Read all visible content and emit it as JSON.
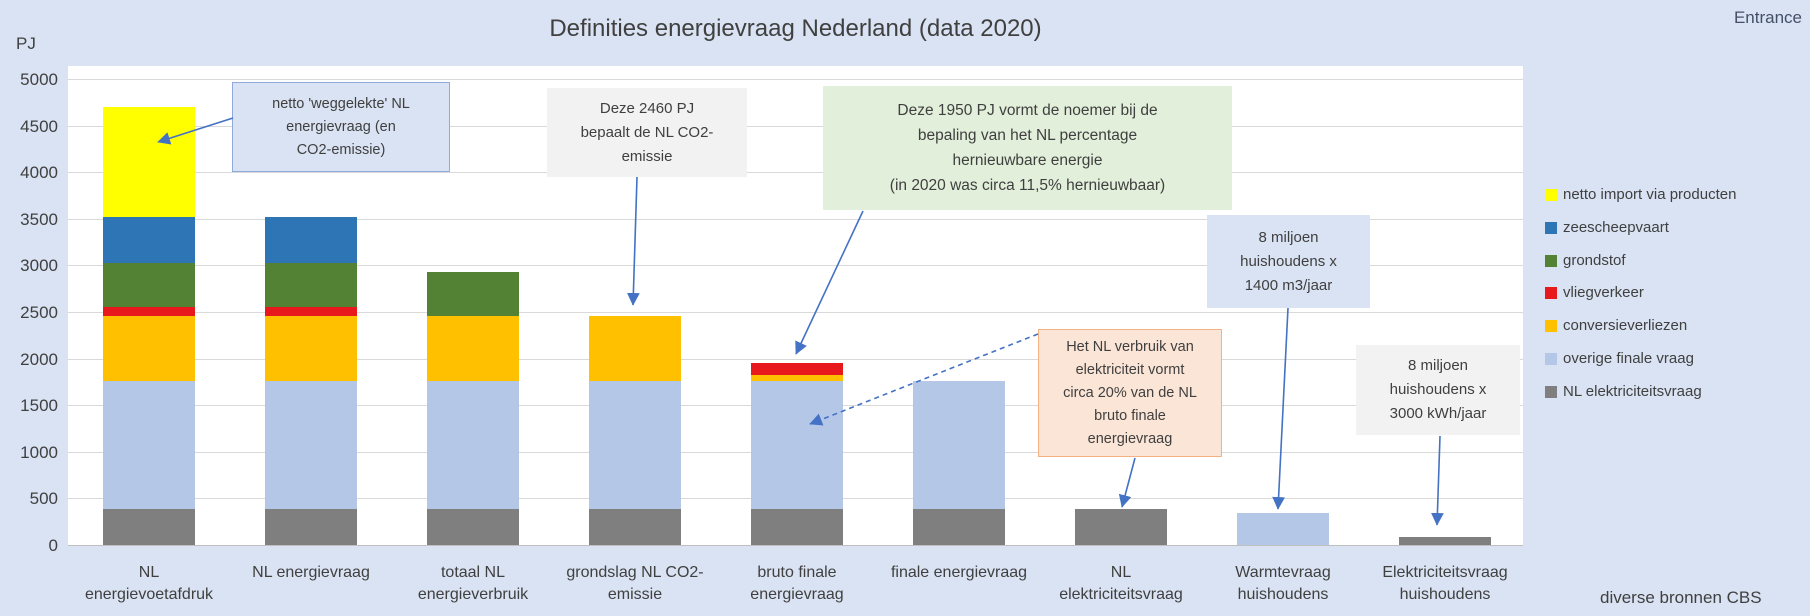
{
  "slide": {
    "entrance_label": "Entrance",
    "source_label": "diverse bronnen CBS",
    "background": "#dae3f3"
  },
  "chart_data": {
    "type": "bar",
    "stacked": true,
    "title": "Definities energievraag Nederland (data 2020)",
    "unit_label": "PJ",
    "xlabel": "",
    "ylabel": "PJ",
    "ylim": [
      0,
      5000
    ],
    "ytick_step": 500,
    "grid": true,
    "legend_position": "right",
    "colors": {
      "netto import via producten": "#ffff00",
      "zeescheepvaart": "#2e75b6",
      "grondstof": "#548235",
      "vliegverkeer": "#e8191d",
      "conversieverliezen": "#ffc000",
      "overige finale vraag": "#b4c7e7",
      "NL elektriciteitsvraag": "#7f7f7f"
    },
    "legend": [
      "netto import via producten",
      "zeescheepvaart",
      "grondstof",
      "vliegverkeer",
      "conversieverliezen",
      "overige finale vraag",
      "NL elektriciteitsvraag"
    ],
    "categories": [
      [
        "NL",
        "energievoetafdruk"
      ],
      [
        "NL energievraag"
      ],
      [
        "totaal NL",
        "energieverbruik"
      ],
      [
        "grondslag NL CO2-",
        "emissie"
      ],
      [
        "bruto finale",
        "energievraag"
      ],
      [
        "finale energievraag"
      ],
      [
        "NL",
        "elektriciteitsvraag"
      ],
      [
        "Warmtevraag",
        "huishoudens"
      ],
      [
        "Elektriciteitsvraag",
        "huishoudens"
      ]
    ],
    "bars": [
      {
        "category": "NL energievoetafdruk",
        "total": 4700,
        "segments": [
          [
            "NL elektriciteitsvraag",
            390
          ],
          [
            "overige finale vraag",
            1370
          ],
          [
            "conversieverliezen",
            700
          ],
          [
            "vliegverkeer",
            90
          ],
          [
            "grondstof",
            480
          ],
          [
            "zeescheepvaart",
            490
          ],
          [
            "netto import via producten",
            1180
          ]
        ]
      },
      {
        "category": "NL energievraag",
        "total": 3520,
        "segments": [
          [
            "NL elektriciteitsvraag",
            390
          ],
          [
            "overige finale vraag",
            1370
          ],
          [
            "conversieverliezen",
            700
          ],
          [
            "vliegverkeer",
            90
          ],
          [
            "grondstof",
            480
          ],
          [
            "zeescheepvaart",
            490
          ]
        ]
      },
      {
        "category": "totaal NL energieverbruik",
        "total": 2930,
        "segments": [
          [
            "NL elektriciteitsvraag",
            390
          ],
          [
            "overige finale vraag",
            1370
          ],
          [
            "conversieverliezen",
            700
          ],
          [
            "grondstof",
            470
          ]
        ]
      },
      {
        "category": "grondslag NL CO2-emissie",
        "total": 2460,
        "segments": [
          [
            "NL elektriciteitsvraag",
            390
          ],
          [
            "overige finale vraag",
            1370
          ],
          [
            "conversieverliezen",
            700
          ]
        ]
      },
      {
        "category": "bruto finale energievraag",
        "total": 1950,
        "segments": [
          [
            "NL elektriciteitsvraag",
            390
          ],
          [
            "overige finale vraag",
            1370
          ],
          [
            "conversieverliezen",
            60
          ],
          [
            "vliegverkeer",
            130
          ]
        ]
      },
      {
        "category": "finale energievraag",
        "total": 1760,
        "segments": [
          [
            "NL elektriciteitsvraag",
            390
          ],
          [
            "overige finale vraag",
            1370
          ]
        ]
      },
      {
        "category": "NL elektriciteitsvraag",
        "total": 390,
        "segments": [
          [
            "NL elektriciteitsvraag",
            390
          ]
        ]
      },
      {
        "category": "Warmtevraag huishoudens",
        "total": 340,
        "segments": [
          [
            "overige finale vraag",
            340
          ]
        ]
      },
      {
        "category": "Elektriciteitsvraag huishoudens",
        "total": 90,
        "segments": [
          [
            "NL elektriciteitsvraag",
            90
          ]
        ]
      }
    ],
    "annotations": [
      {
        "name": "netto-weggelekte",
        "fill": "#dae3f3",
        "border": "#8faadc",
        "lines": [
          "netto 'weggelekte' NL",
          "energievraag (en",
          "CO2-emissie)"
        ]
      },
      {
        "name": "co2-2460",
        "fill": "#f2f2f2",
        "border": "",
        "lines": [
          "Deze 2460 PJ",
          "bepaalt de NL CO2-",
          "emissie"
        ]
      },
      {
        "name": "hernieuwbaar-1950",
        "fill": "#e2efda",
        "border": "",
        "lines": [
          "Deze 1950 PJ vormt de noemer bij de",
          "bepaling  van het NL percentage",
          "hernieuwbare energie",
          "(in 2020 was circa 11,5% hernieuwbaar)"
        ]
      },
      {
        "name": "warmtevraag-8-miljoen",
        "fill": "#dae3f3",
        "border": "",
        "lines": [
          "8 miljoen",
          "huishoudens x",
          "1400 m3/jaar"
        ]
      },
      {
        "name": "elektriciteit-20-procent",
        "fill": "#fbe5d6",
        "border": "#f4b183",
        "lines": [
          "Het NL verbruik van",
          "elektriciteit vormt",
          "circa 20% van de NL",
          "bruto finale",
          "energievraag"
        ]
      },
      {
        "name": "elektriciteitsvraag-8-miljoen",
        "fill": "#f2f2f2",
        "border": "",
        "lines": [
          "8 miljoen",
          "huishoudens x",
          "3000 kWh/jaar"
        ]
      }
    ],
    "arrow_color": "#4472c4"
  }
}
